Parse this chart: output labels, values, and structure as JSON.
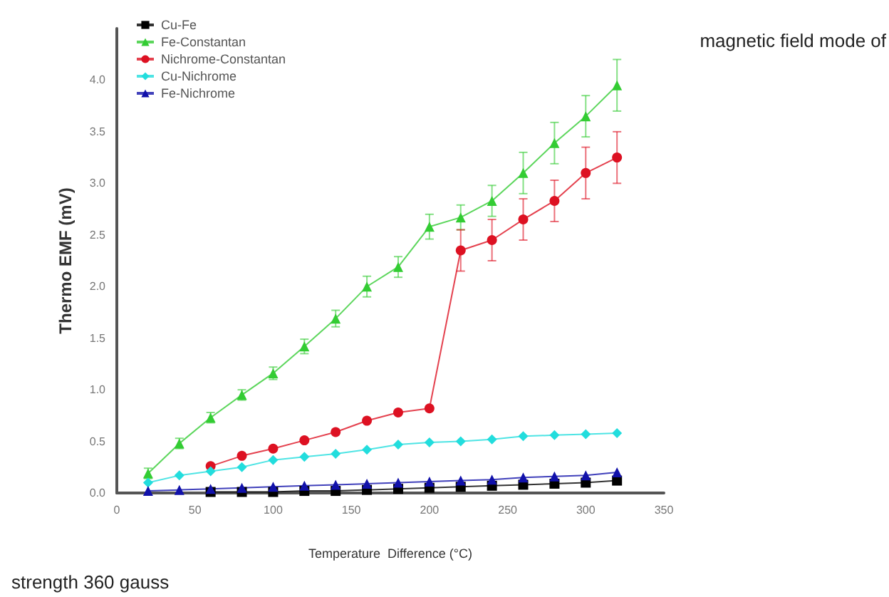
{
  "chart_data": {
    "type": "line",
    "xlabel": "Temperature  Difference (°C)",
    "ylabel": "Thermo EMF (mV)",
    "annotations": [
      "magnetic field mode of",
      "strength 360 gauss"
    ],
    "x": [
      20,
      40,
      60,
      80,
      100,
      120,
      140,
      160,
      180,
      200,
      220,
      240,
      260,
      280,
      300,
      320
    ],
    "xlim": [
      0,
      350
    ],
    "xticks": [
      0,
      50,
      100,
      150,
      200,
      250,
      300,
      350
    ],
    "ylim": [
      0,
      4.5
    ],
    "yticks": [
      {
        "value": 0,
        "label": "0.0"
      },
      {
        "value": 0.5,
        "label": "0.5"
      },
      {
        "value": 1,
        "label": "1.0"
      },
      {
        "value": 1.5,
        "label": "1.5"
      },
      {
        "value": 2,
        "label": "2.0"
      },
      {
        "value": 2.5,
        "label": "2.5"
      },
      {
        "value": 3,
        "label": "3.0"
      },
      {
        "value": 3.5,
        "label": "3.5"
      },
      {
        "value": 4,
        "label": "4.0"
      }
    ],
    "legend": "top left",
    "grid": false,
    "series": [
      {
        "name": "Cu-Fe",
        "color": "#000000",
        "marker": "square",
        "values": [
          null,
          null,
          0.01,
          0.01,
          0.01,
          0.02,
          0.02,
          0.03,
          0.04,
          0.05,
          0.06,
          0.07,
          0.08,
          0.09,
          0.1,
          0.12
        ]
      },
      {
        "name": "Fe-Constantan",
        "color": "#33cc33",
        "marker": "triangle",
        "values": [
          0.19,
          0.48,
          0.73,
          0.95,
          1.16,
          1.42,
          1.69,
          2.0,
          2.19,
          2.58,
          2.67,
          2.83,
          3.1,
          3.39,
          3.65,
          3.95
        ],
        "errors": [
          0.05,
          0.05,
          0.05,
          0.05,
          0.06,
          0.07,
          0.08,
          0.1,
          0.1,
          0.12,
          0.12,
          0.15,
          0.2,
          0.2,
          0.2,
          0.25
        ]
      },
      {
        "name": "Nichrome-Constantan",
        "color": "#dd1122",
        "marker": "circle",
        "values": [
          null,
          null,
          0.26,
          0.36,
          0.43,
          0.51,
          0.59,
          0.7,
          0.78,
          0.82,
          2.35,
          2.45,
          2.65,
          2.83,
          3.1,
          3.25
        ],
        "errors": [
          null,
          null,
          null,
          null,
          null,
          null,
          null,
          null,
          null,
          null,
          0.2,
          0.2,
          0.2,
          0.2,
          0.25,
          0.25
        ]
      },
      {
        "name": "Cu-Nichrome",
        "color": "#22dddd",
        "marker": "diamond",
        "values": [
          0.1,
          0.17,
          0.21,
          0.25,
          0.32,
          0.35,
          0.38,
          0.42,
          0.47,
          0.49,
          0.5,
          0.52,
          0.55,
          0.56,
          0.57,
          0.58
        ]
      },
      {
        "name": "Fe-Nichrome",
        "color": "#1111aa",
        "marker": "triangle",
        "values": [
          0.02,
          0.03,
          0.04,
          0.05,
          0.06,
          0.07,
          0.08,
          0.09,
          0.1,
          0.11,
          0.12,
          0.13,
          0.15,
          0.16,
          0.17,
          0.2
        ]
      }
    ]
  }
}
